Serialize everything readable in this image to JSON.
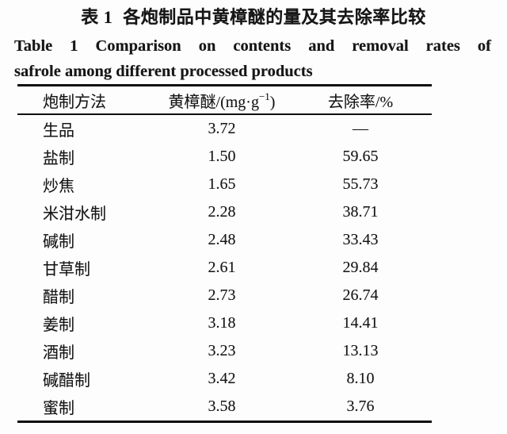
{
  "page": {
    "title_zh": {
      "label": "表 1",
      "text": "各炮制品中黄樟醚的量及其去除率比较"
    },
    "title_en_line1": "Table 1 Comparison on contents and removal rates of",
    "title_en_line2": "safrole among different processed products",
    "text_color": "#161616",
    "rule_color": "#0f0f0f",
    "background_color": "#fdfdfd"
  },
  "table": {
    "columns": {
      "method": "炮制方法",
      "safrole_prefix": "黄樟醚/(mg·g",
      "safrole_sup": "−1",
      "safrole_suffix": ")",
      "removal": "去除率/%"
    },
    "rows": [
      {
        "method": "生品",
        "safrole": "3.72",
        "removal": "—"
      },
      {
        "method": "盐制",
        "safrole": "1.50",
        "removal": "59.65"
      },
      {
        "method": "炒焦",
        "safrole": "1.65",
        "removal": "55.73"
      },
      {
        "method": "米泔水制",
        "safrole": "2.28",
        "removal": "38.71"
      },
      {
        "method": "碱制",
        "safrole": "2.48",
        "removal": "33.43"
      },
      {
        "method": "甘草制",
        "safrole": "2.61",
        "removal": "29.84"
      },
      {
        "method": "醋制",
        "safrole": "2.73",
        "removal": "26.74"
      },
      {
        "method": "姜制",
        "safrole": "3.18",
        "removal": "14.41"
      },
      {
        "method": "酒制",
        "safrole": "3.23",
        "removal": "13.13"
      },
      {
        "method": "碱醋制",
        "safrole": "3.42",
        "removal": "8.10"
      },
      {
        "method": "蜜制",
        "safrole": "3.58",
        "removal": "3.76"
      }
    ]
  }
}
